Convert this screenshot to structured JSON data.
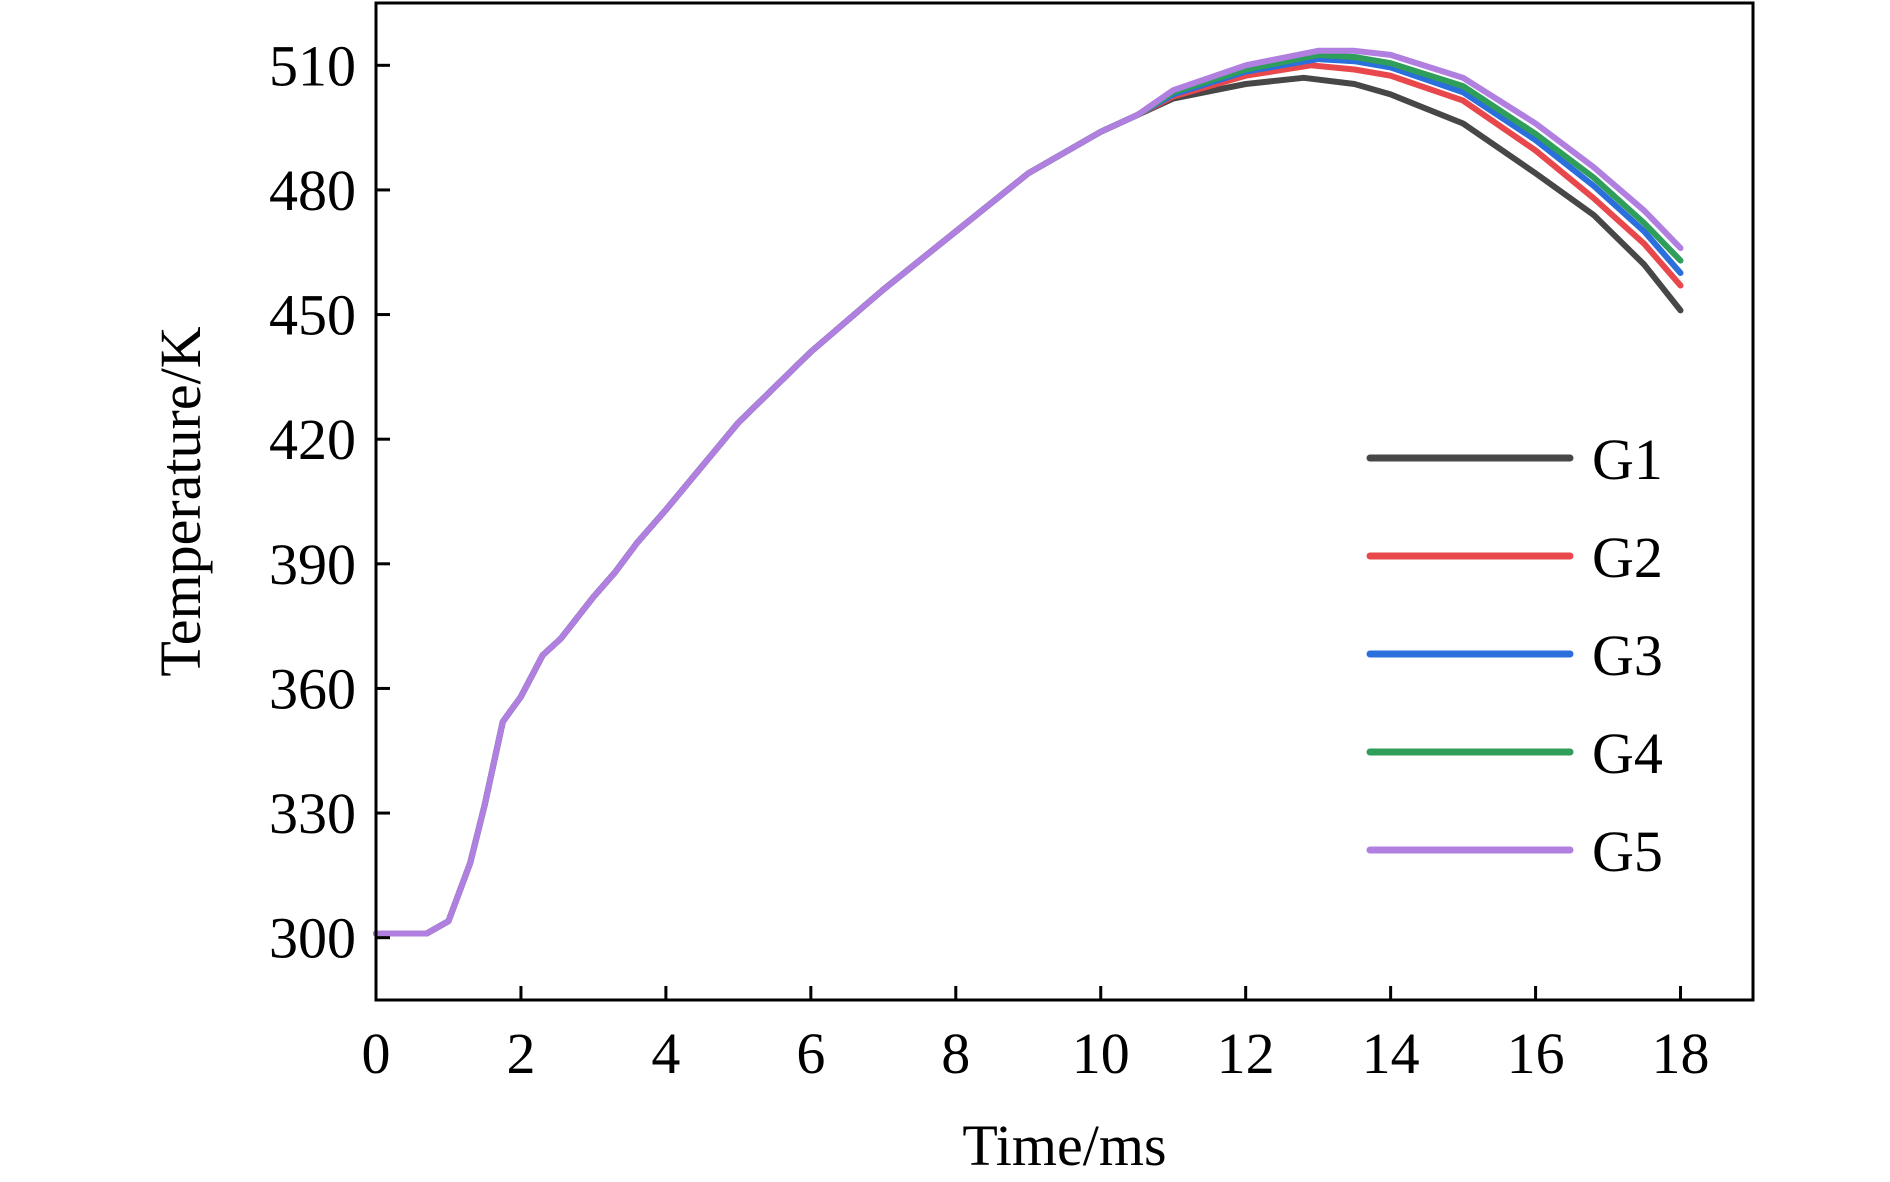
{
  "chart_data": {
    "type": "line",
    "xlabel": "Time/ms",
    "ylabel": "Temperature/K",
    "xlim": [
      0,
      19
    ],
    "ylim": [
      285,
      525
    ],
    "xticks": [
      0,
      2,
      4,
      6,
      8,
      10,
      12,
      14,
      16,
      18
    ],
    "yticks": [
      300,
      330,
      360,
      390,
      420,
      450,
      480,
      510
    ],
    "xtick_labels": [
      "0",
      "2",
      "4",
      "6",
      "8",
      "10",
      "12",
      "14",
      "16",
      "18"
    ],
    "ytick_labels": [
      "300",
      "330",
      "360",
      "390",
      "420",
      "450",
      "480",
      "510"
    ],
    "grid": false,
    "legend_position": "right",
    "shared_curve": {
      "x": [
        0,
        0.7,
        1.0,
        1.3,
        1.5,
        1.75,
        2.0,
        2.3,
        2.55,
        3.0,
        3.3,
        3.6,
        4.0,
        5.0,
        6.0,
        7.0,
        8.0,
        9.0,
        10.0,
        10.5
      ],
      "y": [
        301,
        301,
        304,
        318,
        332,
        352,
        358,
        368,
        372,
        382,
        388,
        395,
        403,
        424,
        441,
        456,
        470,
        484,
        494,
        498
      ]
    },
    "series": [
      {
        "name": "G1",
        "color": "#474747",
        "x": [
          11.0,
          12.0,
          12.8,
          13.5,
          14.0,
          15.0,
          16.0,
          16.8,
          17.5,
          18.0
        ],
        "y": [
          502,
          505.5,
          507,
          505.5,
          503,
          496,
          484,
          474,
          462,
          451
        ]
      },
      {
        "name": "G2",
        "color": "#e8474b",
        "x": [
          11.0,
          12.0,
          12.9,
          13.5,
          14.0,
          15.0,
          16.0,
          16.8,
          17.5,
          18.0
        ],
        "y": [
          502.5,
          507.5,
          510,
          509,
          507.5,
          501.5,
          489.5,
          478,
          467,
          457
        ]
      },
      {
        "name": "G3",
        "color": "#2a6fdb",
        "x": [
          11.0,
          12.0,
          13.0,
          13.5,
          14.0,
          15.0,
          16.0,
          16.8,
          17.5,
          18.0
        ],
        "y": [
          503,
          508.5,
          511.5,
          511,
          509.5,
          503.5,
          492,
          481,
          470,
          460
        ]
      },
      {
        "name": "G4",
        "color": "#2e9e5a",
        "x": [
          11.0,
          12.0,
          13.0,
          13.5,
          14.0,
          15.0,
          16.0,
          16.8,
          17.5,
          18.0
        ],
        "y": [
          503.5,
          509,
          512.5,
          512,
          510.5,
          505,
          493.5,
          483,
          472,
          463
        ]
      },
      {
        "name": "G5",
        "color": "#b07fe0",
        "x": [
          11.0,
          12.0,
          13.0,
          13.5,
          14.0,
          15.0,
          16.0,
          16.8,
          17.5,
          18.0
        ],
        "y": [
          504,
          510,
          513.5,
          513.5,
          512.5,
          507,
          496,
          485.5,
          475,
          466
        ]
      }
    ]
  }
}
